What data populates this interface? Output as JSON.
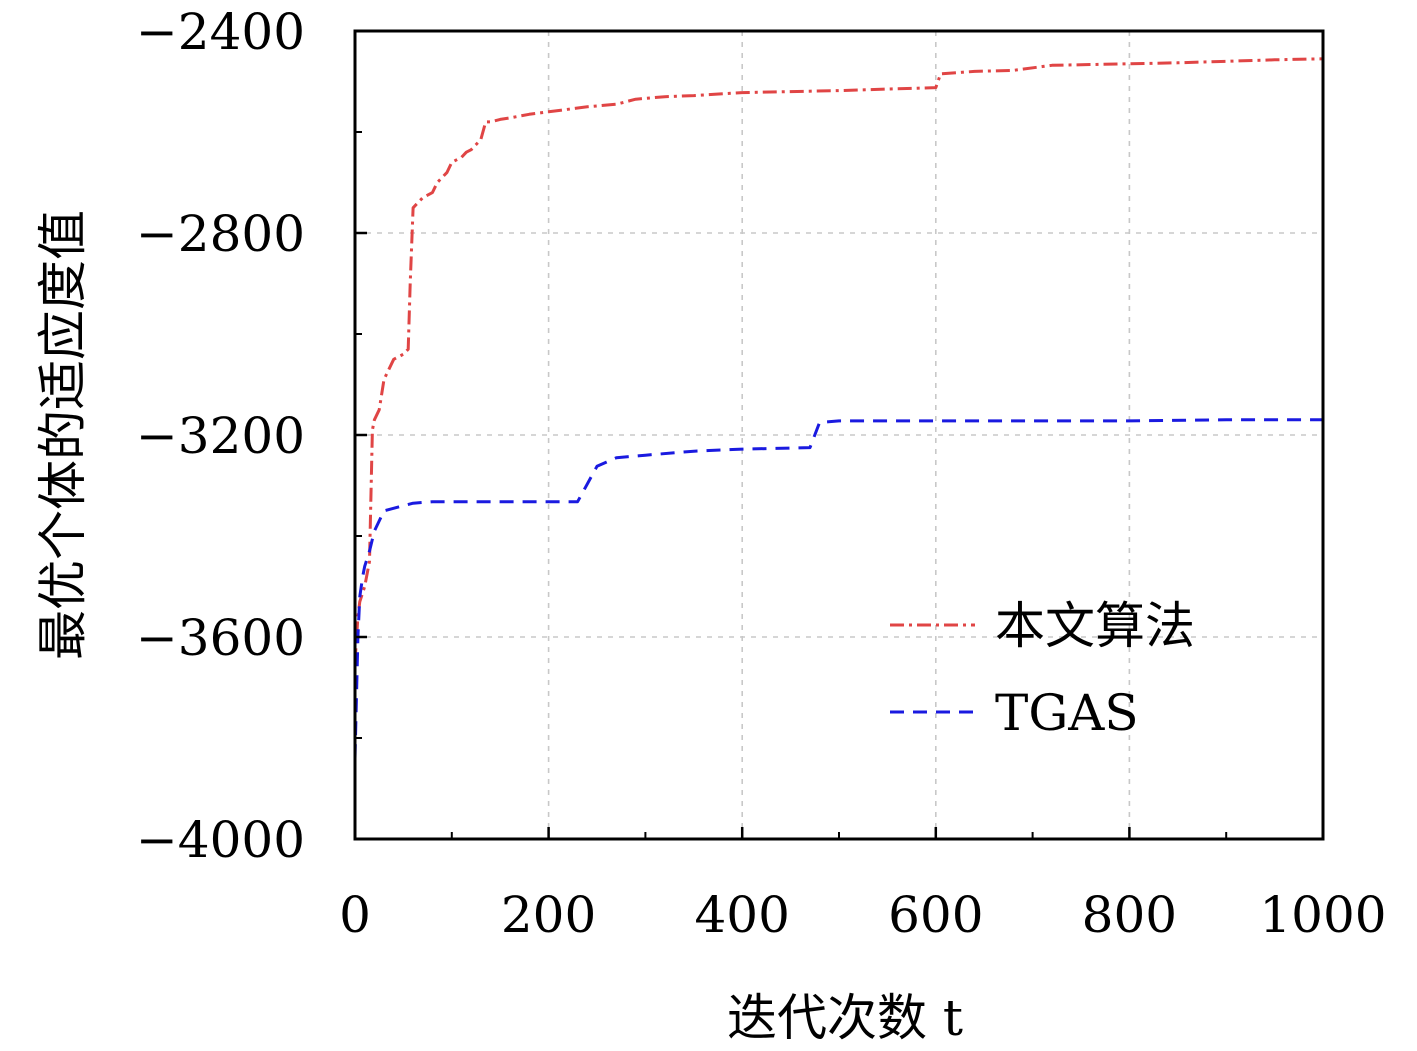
{
  "chart_data": {
    "type": "line",
    "xlabel": "迭代次数 t",
    "ylabel": "最优个体的适应度值",
    "xlim": [
      0,
      1000
    ],
    "ylim": [
      -4000,
      -2400
    ],
    "xticks": [
      0,
      200,
      400,
      600,
      800,
      1000
    ],
    "yticks": [
      -4000,
      -3600,
      -3200,
      -2800,
      -2400
    ],
    "ytick_labels": [
      "−4000",
      "−3600",
      "−3200",
      "−2800",
      "−2400"
    ],
    "grid": true,
    "legend_position": "lower-right",
    "series": [
      {
        "name": "本文算法",
        "color": "#e04545",
        "line_style": "dash-dot",
        "x": [
          0,
          3,
          5,
          10,
          15,
          18,
          20,
          25,
          30,
          35,
          40,
          50,
          55,
          57,
          60,
          65,
          70,
          80,
          85,
          95,
          100,
          110,
          115,
          120,
          125,
          130,
          135,
          140,
          150,
          160,
          180,
          200,
          240,
          270,
          290,
          320,
          350,
          400,
          450,
          500,
          550,
          600,
          605,
          640,
          680,
          720,
          800,
          850,
          900,
          950,
          1000
        ],
        "y": [
          -3650,
          -3560,
          -3530,
          -3500,
          -3450,
          -3190,
          -3170,
          -3150,
          -3090,
          -3070,
          -3050,
          -3040,
          -3030,
          -2900,
          -2750,
          -2740,
          -2730,
          -2720,
          -2700,
          -2680,
          -2660,
          -2650,
          -2640,
          -2635,
          -2625,
          -2615,
          -2580,
          -2580,
          -2575,
          -2572,
          -2565,
          -2560,
          -2550,
          -2545,
          -2535,
          -2530,
          -2528,
          -2522,
          -2520,
          -2518,
          -2515,
          -2512,
          -2485,
          -2480,
          -2478,
          -2468,
          -2465,
          -2463,
          -2460,
          -2457,
          -2455
        ]
      },
      {
        "name": "TGAS",
        "color": "#1a1ae0",
        "line_style": "dashed",
        "x": [
          0,
          3,
          5,
          8,
          10,
          15,
          20,
          30,
          60,
          80,
          100,
          150,
          200,
          230,
          250,
          270,
          300,
          350,
          400,
          450,
          470,
          480,
          500,
          600,
          700,
          800,
          900,
          1000
        ],
        "y": [
          -3840,
          -3600,
          -3520,
          -3480,
          -3460,
          -3430,
          -3390,
          -3350,
          -3335,
          -3332,
          -3332,
          -3332,
          -3332,
          -3332,
          -3262,
          -3245,
          -3240,
          -3232,
          -3228,
          -3226,
          -3225,
          -3175,
          -3172,
          -3172,
          -3172,
          -3172,
          -3170,
          -3170
        ]
      }
    ]
  }
}
